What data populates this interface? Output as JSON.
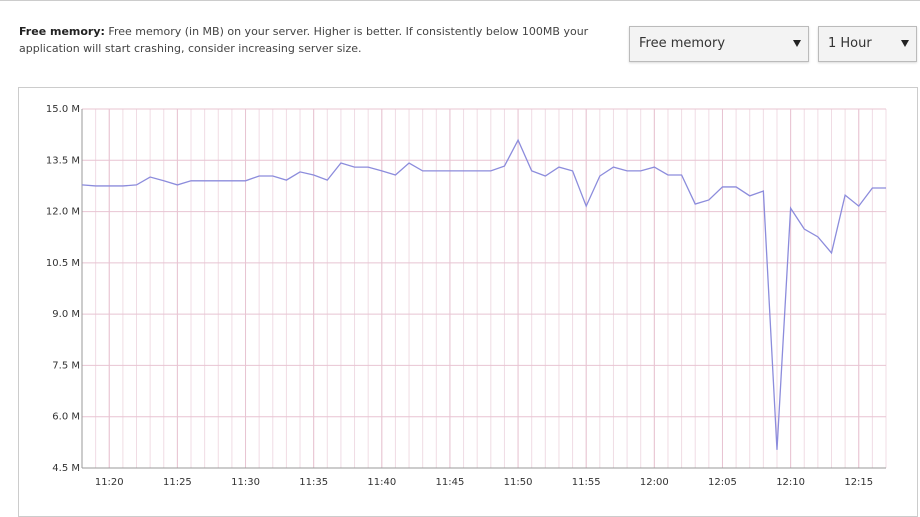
{
  "header": {
    "label": "Free memory:",
    "description": "Free memory (in MB) on your server. Higher is better. If consistently below 100MB your application will start crashing, consider increasing server size."
  },
  "controls": {
    "metric": "Free memory",
    "range": "1 Hour"
  },
  "chart_data": {
    "type": "line",
    "x": [
      678,
      679,
      680,
      681,
      682,
      683,
      684,
      685,
      686,
      687,
      688,
      689,
      690,
      691,
      692,
      693,
      694,
      695,
      696,
      697,
      698,
      699,
      700,
      701,
      702,
      703,
      704,
      705,
      706,
      707,
      708,
      709,
      710,
      711,
      712,
      713,
      714,
      715,
      716,
      717,
      718,
      719,
      720,
      721,
      722,
      723,
      724,
      725,
      726,
      727,
      728,
      729,
      730,
      731,
      732,
      733,
      734,
      735,
      736,
      737
    ],
    "values": [
      12.78,
      12.75,
      12.75,
      12.75,
      12.78,
      13.01,
      12.9,
      12.78,
      12.9,
      12.9,
      12.9,
      12.9,
      12.9,
      13.04,
      13.04,
      12.92,
      13.16,
      13.07,
      12.92,
      13.42,
      13.3,
      13.3,
      13.19,
      13.07,
      13.42,
      13.19,
      13.19,
      13.19,
      13.19,
      13.19,
      13.19,
      13.33,
      14.09,
      13.19,
      13.04,
      13.3,
      13.19,
      12.16,
      13.04,
      13.3,
      13.19,
      13.19,
      13.3,
      13.07,
      13.07,
      12.22,
      12.34,
      12.72,
      12.72,
      12.46,
      12.6,
      5.03,
      12.1,
      11.49,
      11.26,
      10.79,
      12.48,
      12.16,
      12.69,
      12.69
    ],
    "color": "#8c8cdc",
    "xlim": [
      678,
      737
    ],
    "xticks": [
      {
        "value": 680,
        "label": "11:20"
      },
      {
        "value": 685,
        "label": "11:25"
      },
      {
        "value": 690,
        "label": "11:30"
      },
      {
        "value": 695,
        "label": "11:35"
      },
      {
        "value": 700,
        "label": "11:40"
      },
      {
        "value": 705,
        "label": "11:45"
      },
      {
        "value": 710,
        "label": "11:50"
      },
      {
        "value": 715,
        "label": "11:55"
      },
      {
        "value": 720,
        "label": "12:00"
      },
      {
        "value": 725,
        "label": "12:05"
      },
      {
        "value": 730,
        "label": "12:10"
      },
      {
        "value": 735,
        "label": "12:15"
      }
    ],
    "ylim": [
      4.5,
      15
    ],
    "yticks": [
      {
        "value": 4.5,
        "label": "4.5 M"
      },
      {
        "value": 6,
        "label": "6.0 M"
      },
      {
        "value": 7.5,
        "label": "7.5 M"
      },
      {
        "value": 9,
        "label": "9.0 M"
      },
      {
        "value": 10.5,
        "label": "10.5 M"
      },
      {
        "value": 12,
        "label": "12.0 M"
      },
      {
        "value": 13.5,
        "label": "13.5 M"
      },
      {
        "value": 15,
        "label": "15.0 M"
      }
    ],
    "grid": true
  }
}
